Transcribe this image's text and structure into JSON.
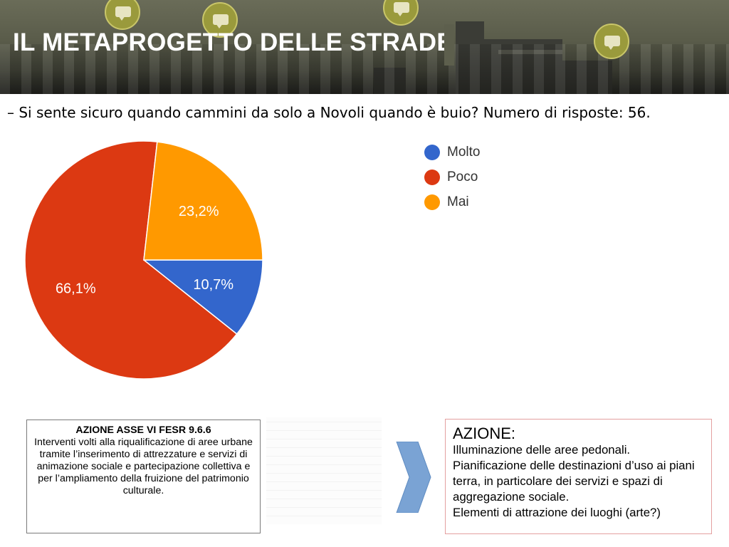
{
  "header": {
    "title": "IL METAPROGETTO DELLE STRADE"
  },
  "question": "– Si sente sicuro quando cammini da solo a Novoli quando è buio? Numero di risposte: 56.",
  "colors": {
    "molto": "#3366cc",
    "poco": "#dc3912",
    "mai": "#ff9900"
  },
  "chart_data": {
    "type": "pie",
    "legend_position": "right",
    "slices": [
      {
        "label": "Molto",
        "value": 10.7,
        "display": "10,7%",
        "color": "#3366cc"
      },
      {
        "label": "Poco",
        "value": 66.1,
        "display": "66,1%",
        "color": "#dc3912"
      },
      {
        "label": "Mai",
        "value": 23.2,
        "display": "23,2%",
        "color": "#ff9900"
      }
    ]
  },
  "box_left": {
    "title": "AZIONE ASSE VI FESR 9.6.6",
    "body": "Interventi volti alla riqualificazione di aree urbane tramite l’inserimento di attrezzature e servizi di animazione sociale e partecipazione collettiva e per l’ampliamento della fruizione del patrimonio culturale."
  },
  "box_right": {
    "heading": "AZIONE:",
    "lines": [
      "Illuminazione delle aree pedonali.",
      "Pianificazione delle destinazioni d’uso ai piani terra, in particolare dei servizi e spazi di aggregazione sociale.",
      "Elementi di attrazione dei luoghi (arte?)"
    ]
  },
  "icons": {
    "banner_bubbles": "speech-bubble-icon",
    "arrow": "chevron-right-icon"
  }
}
